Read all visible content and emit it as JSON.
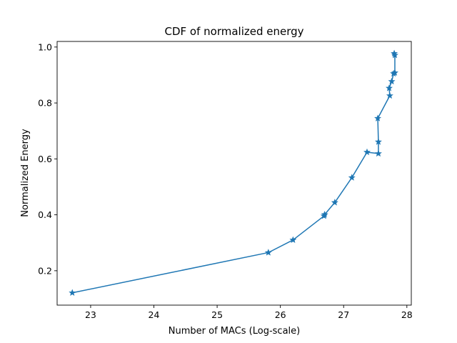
{
  "chart_data": {
    "type": "line",
    "title": "CDF of normalized energy",
    "xlabel": "Number of MACs (Log-scale)",
    "ylabel": "Normalized Energy",
    "xlim": [
      22.47,
      28.07
    ],
    "ylim": [
      0.077,
      1.02
    ],
    "xticks": [
      23,
      24,
      25,
      26,
      27,
      28
    ],
    "yticks": [
      0.2,
      0.4,
      0.6,
      0.8,
      1.0
    ],
    "xtick_labels": [
      "23",
      "24",
      "25",
      "26",
      "27",
      "28"
    ],
    "ytick_labels": [
      "0.2",
      "0.4",
      "0.6",
      "0.8",
      "1.0"
    ],
    "grid": false,
    "marker": "star",
    "series": [
      {
        "color": "#1f77b4",
        "x": [
          22.71,
          25.81,
          26.2,
          26.69,
          26.7,
          26.86,
          27.13,
          27.37,
          27.55,
          27.55,
          27.54,
          27.73,
          27.72,
          27.76,
          27.79,
          27.81,
          27.81,
          27.8
        ],
        "y": [
          0.121,
          0.265,
          0.31,
          0.396,
          0.401,
          0.444,
          0.533,
          0.624,
          0.619,
          0.661,
          0.745,
          0.826,
          0.853,
          0.877,
          0.905,
          0.908,
          0.971,
          0.977
        ]
      }
    ]
  }
}
